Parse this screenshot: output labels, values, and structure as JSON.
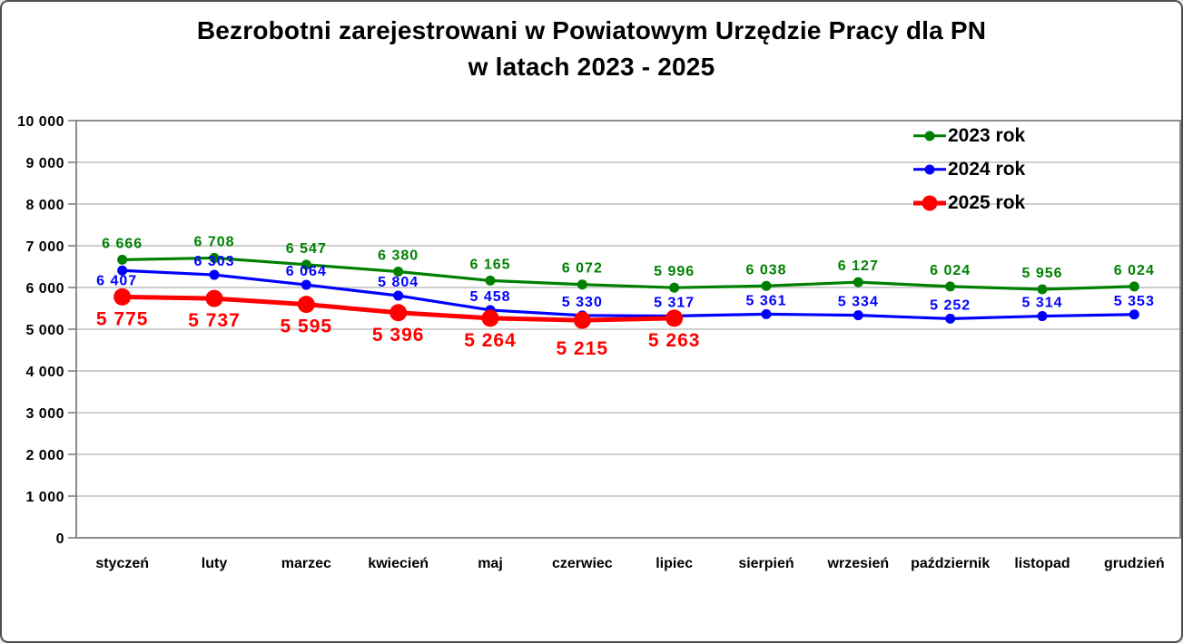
{
  "title": {
    "line1": "Bezrobotni zarejestrowani w Powiatowym Urzędzie Pracy dla PN",
    "line2": "w latach 2023 - 2025"
  },
  "chart_data": {
    "type": "line",
    "title": "Bezrobotni zarejestrowani w Powiatowym Urzędzie Pracy dla PN w latach 2023 - 2025",
    "categories": [
      "styczeń",
      "luty",
      "marzec",
      "kwiecień",
      "maj",
      "czerwiec",
      "lipiec",
      "sierpień",
      "wrzesień",
      "październik",
      "listopad",
      "grudzień"
    ],
    "series": [
      {
        "name": "2023 rok",
        "color": "#008000",
        "values": [
          6666,
          6708,
          6547,
          6380,
          6165,
          6072,
          5996,
          6038,
          6127,
          6024,
          5956,
          6024
        ],
        "labels": [
          "6 666",
          "6 708",
          "6 547",
          "6 380",
          "6 165",
          "6 072",
          "5 996",
          "6 038",
          "6 127",
          "6 024",
          "5 956",
          "6 024"
        ]
      },
      {
        "name": "2024 rok",
        "color": "#0000ff",
        "values": [
          6407,
          6303,
          6064,
          5804,
          5458,
          5330,
          5317,
          5361,
          5334,
          5252,
          5314,
          5353
        ],
        "labels": [
          "6 407",
          "6 303",
          "6 064",
          "5 804",
          "5 458",
          "5 330",
          "5 317",
          "5 361",
          "5 334",
          "5 252",
          "5 314",
          "5 353"
        ]
      },
      {
        "name": "2025 rok",
        "color": "#ff0000",
        "values": [
          5775,
          5737,
          5595,
          5396,
          5264,
          5215,
          5263
        ],
        "labels": [
          "5 775",
          "5 737",
          "5 595",
          "5 396",
          "5 264",
          "5 215",
          "5 263"
        ]
      }
    ],
    "xlabel": "",
    "ylabel": "",
    "ylim": [
      0,
      10000
    ],
    "ytick_step": 1000,
    "ytick_labels": [
      "0",
      "1 000",
      "2 000",
      "3 000",
      "4 000",
      "5 000",
      "6 000",
      "7 000",
      "8 000",
      "9 000",
      "10 000"
    ],
    "grid": true,
    "legend_position": "top-right",
    "colors": {
      "grid": "#bfbfbf",
      "axis": "#808080",
      "text": "#000000",
      "background": "#ffffff"
    }
  }
}
